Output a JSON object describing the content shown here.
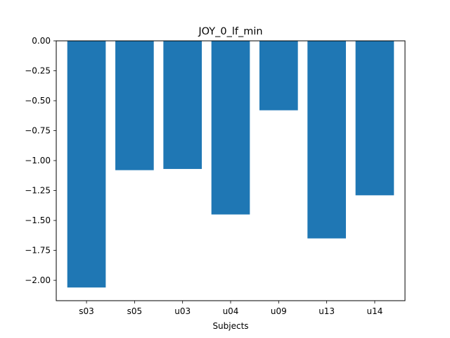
{
  "chart_data": {
    "type": "bar",
    "title": "JOY_0_lf_min",
    "xlabel": "Subjects",
    "ylabel": "",
    "categories": [
      "s03",
      "s05",
      "u03",
      "u04",
      "u09",
      "u13",
      "u14"
    ],
    "values": [
      -2.06,
      -1.08,
      -1.07,
      -1.45,
      -0.58,
      -1.65,
      -1.29
    ],
    "ylim": [
      -2.17,
      0.0
    ],
    "yticks": [
      0.0,
      -0.25,
      -0.5,
      -0.75,
      -1.0,
      -1.25,
      -1.5,
      -1.75,
      -2.0
    ],
    "ytick_labels": [
      "0.00",
      "−0.25",
      "−0.50",
      "−0.75",
      "−1.00",
      "−1.25",
      "−1.50",
      "−1.75",
      "−2.00"
    ],
    "bar_color": "#1f77b4",
    "grid": false,
    "legend": "none"
  }
}
